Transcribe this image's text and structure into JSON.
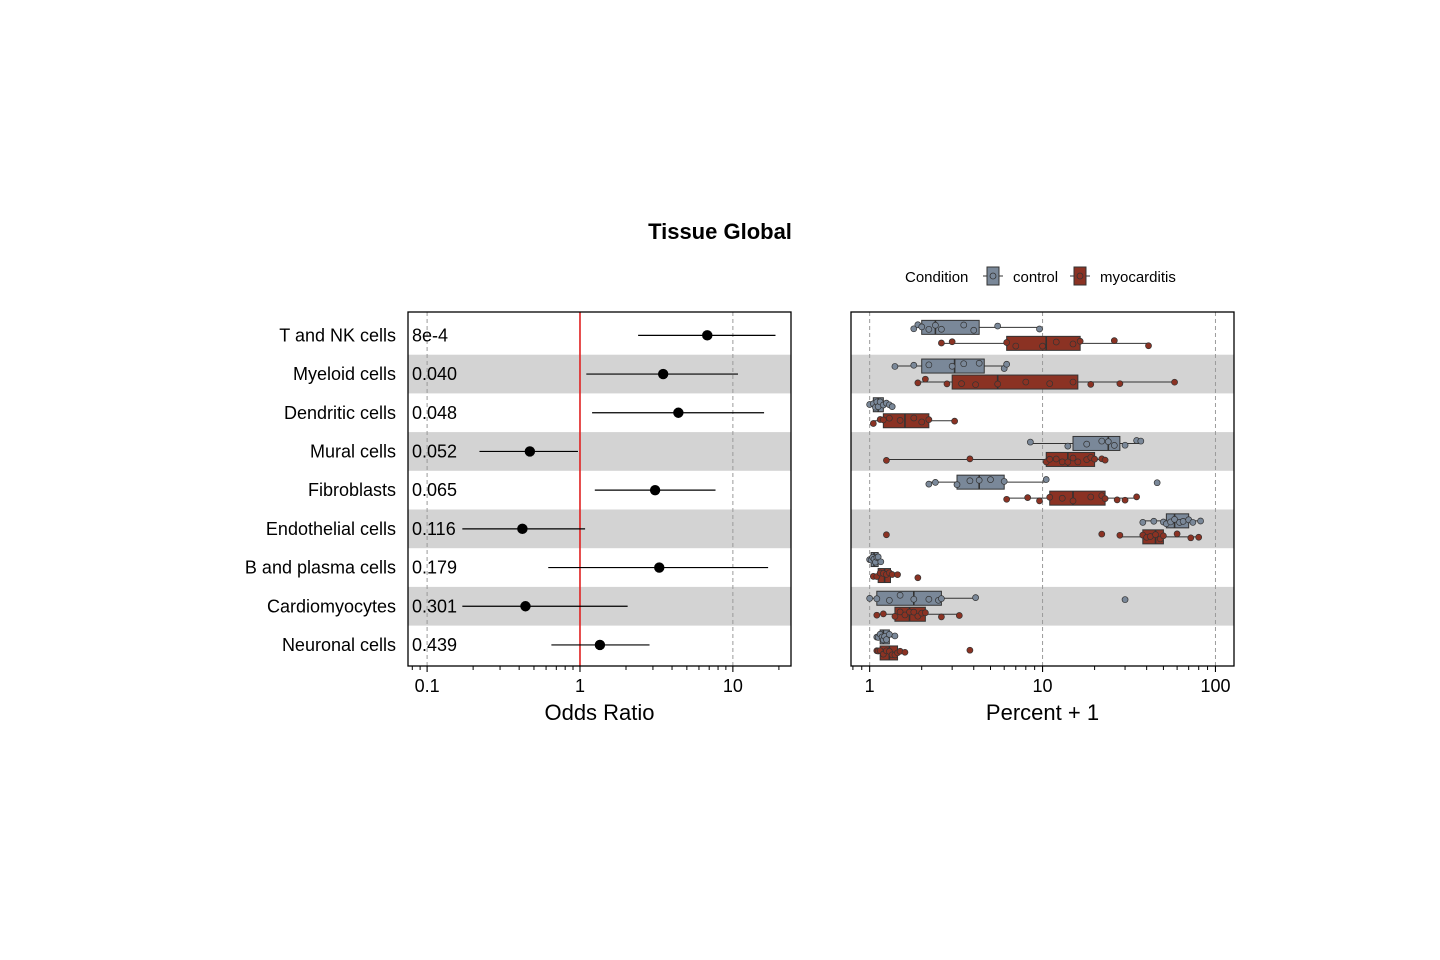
{
  "title": "Tissue Global",
  "colors": {
    "control": "#7a8899",
    "myocarditis": "#8b3223",
    "reference_line": "#e02020",
    "band": "#d3d3d3",
    "point": "#000000"
  },
  "legend": {
    "title": "Condition",
    "items": [
      {
        "label": "control",
        "color": "#7a8899"
      },
      {
        "label": "myocarditis",
        "color": "#8b3223"
      }
    ]
  },
  "chart_data": [
    {
      "type": "forest",
      "xlabel": "Odds Ratio",
      "xscale": "log",
      "xlim": [
        0.075,
        24
      ],
      "xticks": [
        "0.1",
        "1",
        "10"
      ],
      "reference_line": 1,
      "rows": [
        {
          "label": "T and NK cells",
          "pvalue": "8e-4",
          "or": 6.8,
          "lo": 2.4,
          "hi": 19
        },
        {
          "label": "Myeloid cells",
          "pvalue": "0.040",
          "or": 3.5,
          "lo": 1.1,
          "hi": 10.8
        },
        {
          "label": "Dendritic cells",
          "pvalue": "0.048",
          "or": 4.4,
          "lo": 1.2,
          "hi": 16
        },
        {
          "label": "Mural cells",
          "pvalue": "0.052",
          "or": 0.47,
          "lo": 0.22,
          "hi": 0.97
        },
        {
          "label": "Fibroblasts",
          "pvalue": "0.065",
          "or": 3.1,
          "lo": 1.25,
          "hi": 7.7
        },
        {
          "label": "Endothelial cells",
          "pvalue": "0.116",
          "or": 0.42,
          "lo": 0.17,
          "hi": 1.08
        },
        {
          "label": "B and plasma cells",
          "pvalue": "0.179",
          "or": 3.3,
          "lo": 0.62,
          "hi": 17
        },
        {
          "label": "Cardiomyocytes",
          "pvalue": "0.301",
          "or": 0.44,
          "lo": 0.17,
          "hi": 2.05
        },
        {
          "label": "Neuronal cells",
          "pvalue": "0.439",
          "or": 1.35,
          "lo": 0.65,
          "hi": 2.85
        }
      ]
    },
    {
      "type": "boxplot",
      "xlabel": "Percent + 1",
      "xscale": "log",
      "xlim": [
        0.78,
        128
      ],
      "xticks": [
        "1",
        "10",
        "100"
      ],
      "groups": [
        "control",
        "myocarditis"
      ],
      "rows": [
        {
          "label": "T and NK cells",
          "control": {
            "min": 1.8,
            "q1": 2.0,
            "median": 2.4,
            "q3": 4.3,
            "max": 9.6,
            "points": [
              1.8,
              1.9,
              2.0,
              2.2,
              2.4,
              2.6,
              3.5,
              4.0,
              5.5,
              9.6
            ]
          },
          "myocarditis": {
            "min": 2.6,
            "q1": 6.2,
            "median": 10.5,
            "q3": 16.5,
            "max": 41,
            "points": [
              2.6,
              3.0,
              6.2,
              7.0,
              10,
              12,
              15,
              16.5,
              26,
              41
            ]
          }
        },
        {
          "label": "Myeloid cells",
          "control": {
            "min": 1.4,
            "q1": 2.0,
            "median": 3.1,
            "q3": 4.6,
            "max": 6.2,
            "points": [
              1.4,
              1.8,
              2.2,
              3.0,
              3.5,
              4.3,
              6.0,
              6.2
            ]
          },
          "myocarditis": {
            "min": 1.9,
            "q1": 3.0,
            "median": 5.5,
            "q3": 16,
            "max": 58,
            "points": [
              1.9,
              2.1,
              2.8,
              3.4,
              4.1,
              5.5,
              8,
              11,
              15,
              19,
              28,
              58
            ]
          }
        },
        {
          "label": "Dendritic cells",
          "control": {
            "min": 1.0,
            "q1": 1.05,
            "median": 1.12,
            "q3": 1.2,
            "max": 1.35,
            "points": [
              1.0,
              1.05,
              1.08,
              1.1,
              1.12,
              1.15,
              1.2,
              1.25,
              1.3,
              1.35
            ]
          },
          "myocarditis": {
            "min": 1.05,
            "q1": 1.2,
            "median": 1.6,
            "q3": 2.2,
            "max": 3.1,
            "points": [
              1.05,
              1.15,
              1.2,
              1.3,
              1.5,
              1.8,
              2.0,
              2.2,
              3.1
            ]
          }
        },
        {
          "label": "Mural cells",
          "control": {
            "min": 8.5,
            "q1": 15,
            "median": 24,
            "q3": 28,
            "max": 37,
            "points": [
              8.5,
              14,
              18,
              22,
              24,
              26,
              30,
              35,
              37
            ]
          },
          "myocarditis": {
            "min": 1.25,
            "q1": 10.5,
            "median": 14,
            "q3": 20,
            "max": 23,
            "points": [
              1.25,
              3.8,
              10.5,
              11,
              12,
              13,
              14,
              15,
              16,
              18,
              19,
              20,
              22,
              23
            ]
          }
        },
        {
          "label": "Fibroblasts",
          "control": {
            "min": 2.2,
            "q1": 3.2,
            "median": 4.3,
            "q3": 6.0,
            "max": 10.5,
            "points": [
              2.2,
              2.4,
              3.2,
              3.8,
              4.3,
              5.0,
              6.0,
              10.5,
              46
            ]
          },
          "myocarditis": {
            "min": 6.2,
            "q1": 11,
            "median": 15,
            "q3": 23,
            "max": 35,
            "points": [
              6.2,
              8.2,
              9.6,
              11,
              13,
              15,
              19,
              22,
              23,
              27,
              30,
              35
            ]
          }
        },
        {
          "label": "Endothelial cells",
          "control": {
            "min": 38,
            "q1": 52,
            "median": 58,
            "q3": 70,
            "max": 82,
            "points": [
              38,
              44,
              50,
              52,
              55,
              58,
              62,
              65,
              70,
              74,
              82
            ]
          },
          "myocarditis": {
            "min": 28,
            "q1": 38,
            "median": 45,
            "q3": 50,
            "max": 80,
            "points": [
              1.25,
              22,
              28,
              38,
              40,
              42,
              45,
              48,
              50,
              60,
              72,
              80
            ]
          }
        },
        {
          "label": "B and plasma cells",
          "control": {
            "min": 1.0,
            "q1": 1.02,
            "median": 1.06,
            "q3": 1.12,
            "max": 1.16,
            "points": [
              1.0,
              1.02,
              1.04,
              1.06,
              1.08,
              1.1,
              1.12,
              1.16
            ]
          },
          "myocarditis": {
            "min": 1.05,
            "q1": 1.12,
            "median": 1.22,
            "q3": 1.32,
            "max": 1.45,
            "points": [
              1.05,
              1.1,
              1.15,
              1.2,
              1.25,
              1.3,
              1.35,
              1.45,
              1.9
            ]
          }
        },
        {
          "label": "Cardiomyocytes",
          "control": {
            "min": 1.0,
            "q1": 1.1,
            "median": 1.8,
            "q3": 2.6,
            "max": 4.1,
            "points": [
              1.0,
              1.1,
              1.3,
              1.5,
              1.8,
              2.2,
              2.5,
              2.6,
              4.1,
              30
            ]
          },
          "myocarditis": {
            "min": 1.1,
            "q1": 1.4,
            "median": 1.7,
            "q3": 2.1,
            "max": 3.3,
            "points": [
              1.1,
              1.2,
              1.4,
              1.5,
              1.6,
              1.7,
              1.8,
              1.9,
              2.0,
              2.1,
              2.6,
              3.3
            ]
          }
        },
        {
          "label": "Neuronal cells",
          "control": {
            "min": 1.1,
            "q1": 1.15,
            "median": 1.2,
            "q3": 1.3,
            "max": 1.4,
            "points": [
              1.1,
              1.12,
              1.15,
              1.18,
              1.2,
              1.22,
              1.25,
              1.3,
              1.4
            ]
          },
          "myocarditis": {
            "min": 1.1,
            "q1": 1.15,
            "median": 1.3,
            "q3": 1.45,
            "max": 1.6,
            "points": [
              1.1,
              1.12,
              1.15,
              1.2,
              1.25,
              1.3,
              1.35,
              1.4,
              1.45,
              1.5,
              1.6,
              3.8
            ]
          }
        }
      ]
    }
  ]
}
